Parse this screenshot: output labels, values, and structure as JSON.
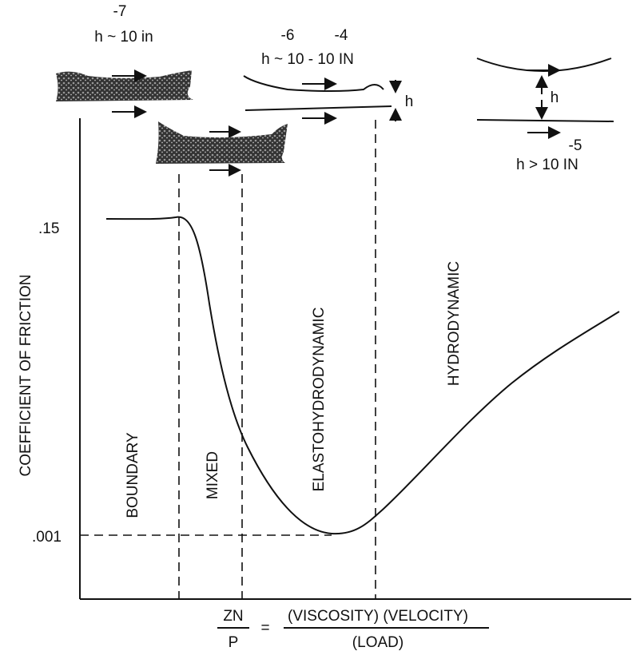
{
  "film_thickness": {
    "boundary": {
      "exponent": "-7",
      "label": "h ~ 10 in"
    },
    "elastohydrodynamic": {
      "exponents": [
        "-6",
        "-4"
      ],
      "label": "h ~ 10 - 10 IN",
      "gap": "h"
    },
    "hydrodynamic": {
      "gap": "h",
      "exponent": "-5",
      "label": "h > 10 IN"
    }
  },
  "regimes": [
    "BOUNDARY",
    "MIXED",
    "ELASTOHYDRODYNAMIC",
    "HYDRODYNAMIC"
  ],
  "axes": {
    "y_label": "COEFFICIENT OF FRICTION",
    "y_ticks": [
      ".15",
      ".001"
    ],
    "x_label": {
      "numerator": "ZN",
      "denominator": "P",
      "equals": "=",
      "definition_numerator": "(VISCOSITY) (VELOCITY)",
      "definition_denominator": "(LOAD)"
    }
  }
}
